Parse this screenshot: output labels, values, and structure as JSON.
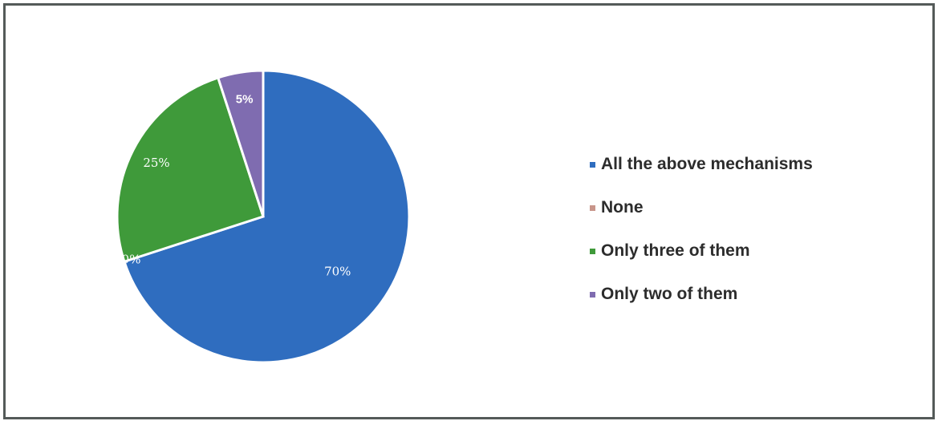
{
  "chart_data": {
    "type": "pie",
    "categories": [
      "All the above mechanisms",
      "None",
      "Only three of them",
      "Only two of them"
    ],
    "values": [
      70,
      0,
      25,
      5
    ],
    "labels": [
      "70%",
      "0%",
      "25%",
      "5%"
    ],
    "colors": [
      "#2f6dbf",
      "#c0504d",
      "#3f9a3a",
      "#7f6cb0"
    ],
    "legend_position": "right"
  }
}
